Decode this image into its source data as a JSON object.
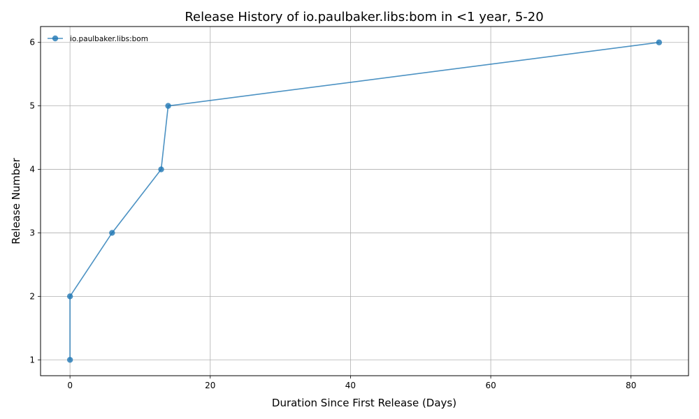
{
  "chart_data": {
    "type": "line",
    "title": "Release History of io.paulbaker.libs:bom in <1 year, 5-20",
    "xlabel": "Duration Since First Release (Days)",
    "ylabel": "Release Number",
    "xlim": [
      -4.2,
      88.2
    ],
    "ylim": [
      0.75,
      6.25
    ],
    "xticks": [
      0,
      20,
      40,
      60,
      80
    ],
    "yticks": [
      1,
      2,
      3,
      4,
      5,
      6
    ],
    "grid": true,
    "legend_position": "top-left",
    "series": [
      {
        "name": "io.paulbaker.libs:bom",
        "color": "#1f77b4",
        "x": [
          0,
          0,
          6,
          13,
          14,
          84
        ],
        "y": [
          1,
          2,
          3,
          4,
          5,
          6
        ]
      }
    ]
  }
}
